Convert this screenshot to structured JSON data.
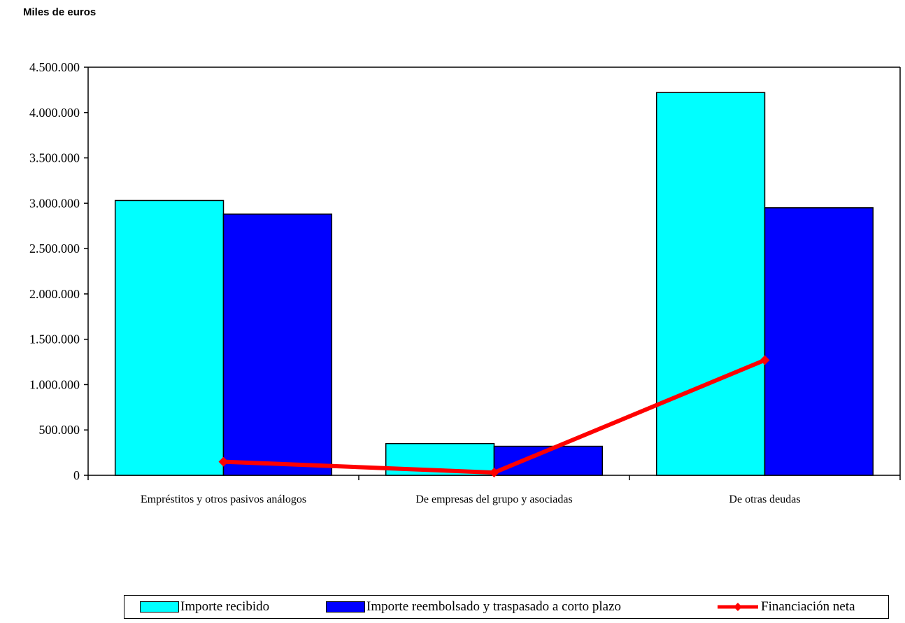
{
  "unit_label": "Miles de euros",
  "colors": {
    "importe_recibido": "#00FFFF",
    "importe_reembolsado": "#0000FF",
    "financiacion_neta": "#FF0000"
  },
  "legend": [
    {
      "label": "Importe recibido",
      "kind": "bar",
      "color": "#00FFFF"
    },
    {
      "label": "Importe reembolsado y traspasado a corto plazo",
      "kind": "bar",
      "color": "#0000FF"
    },
    {
      "label": "Financiación neta",
      "kind": "line",
      "color": "#FF0000"
    }
  ],
  "chart_data": {
    "type": "bar",
    "title": "",
    "xlabel": "",
    "ylabel": "Miles de euros",
    "ylim": [
      0,
      4500000
    ],
    "yticks": [
      0,
      500000,
      1000000,
      1500000,
      2000000,
      2500000,
      3000000,
      3500000,
      4000000,
      4500000
    ],
    "ytick_labels": [
      "0",
      "500.000",
      "1.000.000",
      "1.500.000",
      "2.000.000",
      "2.500.000",
      "3.000.000",
      "3.500.000",
      "4.000.000",
      "4.500.000"
    ],
    "categories": [
      "Empréstitos y otros pasivos análogos",
      "De empresas del grupo y asociadas",
      "De otras deudas"
    ],
    "series": [
      {
        "name": "Importe recibido",
        "type": "bar",
        "color": "#00FFFF",
        "values": [
          3030000,
          350000,
          4220000
        ]
      },
      {
        "name": "Importe reembolsado y traspasado a corto plazo",
        "type": "bar",
        "color": "#0000FF",
        "values": [
          2880000,
          320000,
          2950000
        ]
      },
      {
        "name": "Financiación neta",
        "type": "line",
        "color": "#FF0000",
        "values": [
          150000,
          30000,
          1270000
        ]
      }
    ],
    "grid": false,
    "legend_position": "bottom"
  }
}
